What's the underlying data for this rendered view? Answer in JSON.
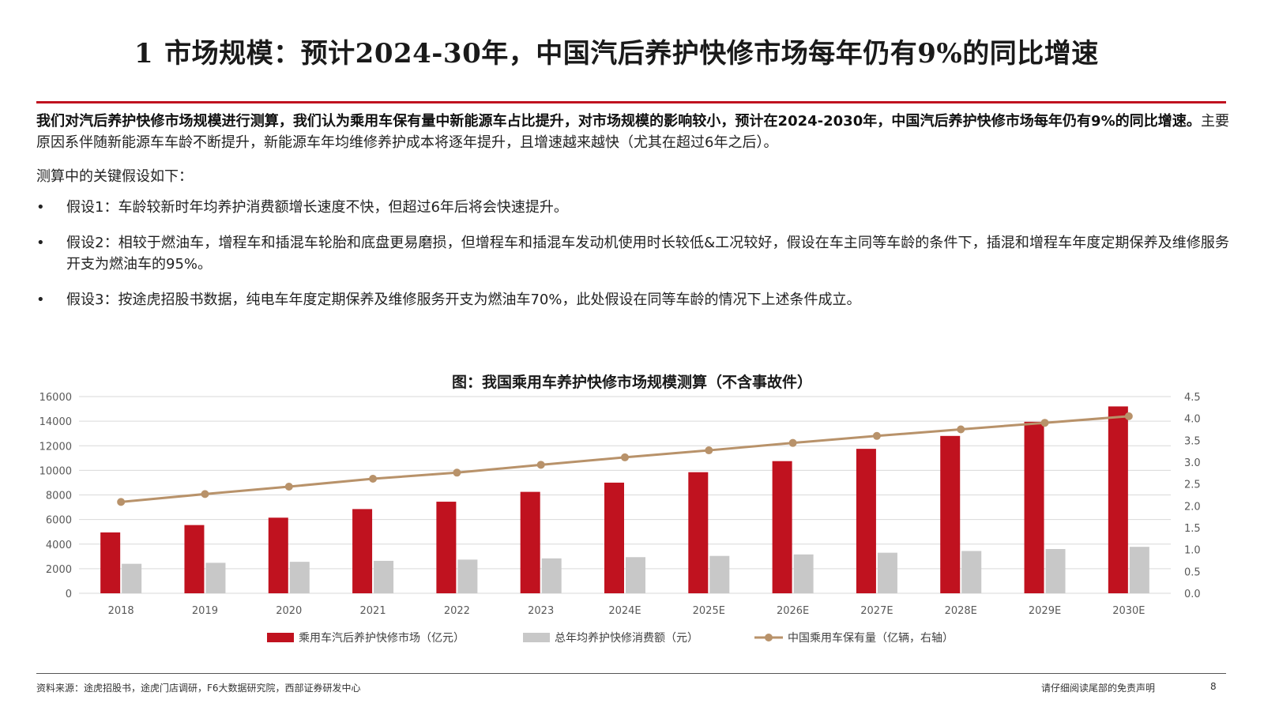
{
  "header": {
    "number": "1",
    "title": "市场规模：预计2024-30年，中国汽后养护快修市场每年仍有9%的同比增速"
  },
  "intro": {
    "bold": "我们对汽后养护快修市场规模进行测算，我们认为乘用车保有量中新能源车占比提升，对市场规模的影响较小，预计在2024-2030年，中国汽后养护快修市场每年仍有9%的同比增速。",
    "regular": "主要原因系伴随新能源车车龄不断提升，新能源车年均维修养护成本将逐年提升，且增速越来越快（尤其在超过6年之后）。"
  },
  "assumptions": {
    "title": "测算中的关键假设如下：",
    "bullet": "•",
    "items": [
      "假设1：车龄较新时年均养护消费额增长速度不快，但超过6年后将会快速提升。",
      "假设2：相较于燃油车，增程车和插混车轮胎和底盘更易磨损，但增程车和插混车发动机使用时长较低&工况较好，假设在车主同等车龄的条件下，插混和增程车年度定期保养及维修服务开支为燃油车的95%。",
      "假设3：按途虎招股书数据，纯电车年度定期保养及维修服务开支为燃油车70%，此处假设在同等车龄的情况下上述条件成立。"
    ]
  },
  "chart_data": {
    "type": "bar",
    "title": "图：我国乘用车养护快修市场规模测算（不含事故件）",
    "categories": [
      "2018",
      "2019",
      "2020",
      "2021",
      "2022",
      "2023",
      "2024E",
      "2025E",
      "2026E",
      "2027E",
      "2028E",
      "2029E",
      "2030E"
    ],
    "series": [
      {
        "name": "乘用车汽后养护快修市场（亿元）",
        "type": "bar",
        "axis": "left",
        "color": "#c0121f",
        "values": [
          4950,
          5550,
          6150,
          6850,
          7450,
          8250,
          9000,
          9850,
          10750,
          11750,
          12800,
          13950,
          15200
        ]
      },
      {
        "name": "总年均养护快修消费额（元）",
        "type": "bar",
        "axis": "left",
        "color": "#c8c8c8",
        "values": [
          2400,
          2480,
          2560,
          2640,
          2740,
          2840,
          2940,
          3040,
          3160,
          3300,
          3440,
          3600,
          3780
        ]
      },
      {
        "name": "中国乘用车保有量（亿辆，右轴）",
        "type": "line",
        "axis": "right",
        "color": "#b8926a",
        "values": [
          2.09,
          2.27,
          2.44,
          2.62,
          2.76,
          2.94,
          3.11,
          3.27,
          3.44,
          3.6,
          3.75,
          3.9,
          4.05
        ]
      }
    ],
    "y_left": {
      "min": 0,
      "max": 16000,
      "ticks": [
        "0",
        "2000",
        "4000",
        "6000",
        "8000",
        "10000",
        "12000",
        "14000",
        "16000"
      ]
    },
    "y_right": {
      "min": 0,
      "max": 4.5,
      "ticks": [
        "0.0",
        "0.5",
        "1.0",
        "1.5",
        "2.0",
        "2.5",
        "3.0",
        "3.5",
        "4.0",
        "4.5"
      ]
    },
    "grid": true,
    "legend_position": "bottom"
  },
  "footer": {
    "source": "资料来源：途虎招股书，途虎门店调研，F6大数据研究院，西部证券研发中心",
    "disclaimer": "请仔细阅读尾部的免责声明",
    "page": "8"
  },
  "colors": {
    "accent_red": "#c0121f",
    "gray_bar": "#c8c8c8",
    "line_tan": "#b8926a"
  }
}
